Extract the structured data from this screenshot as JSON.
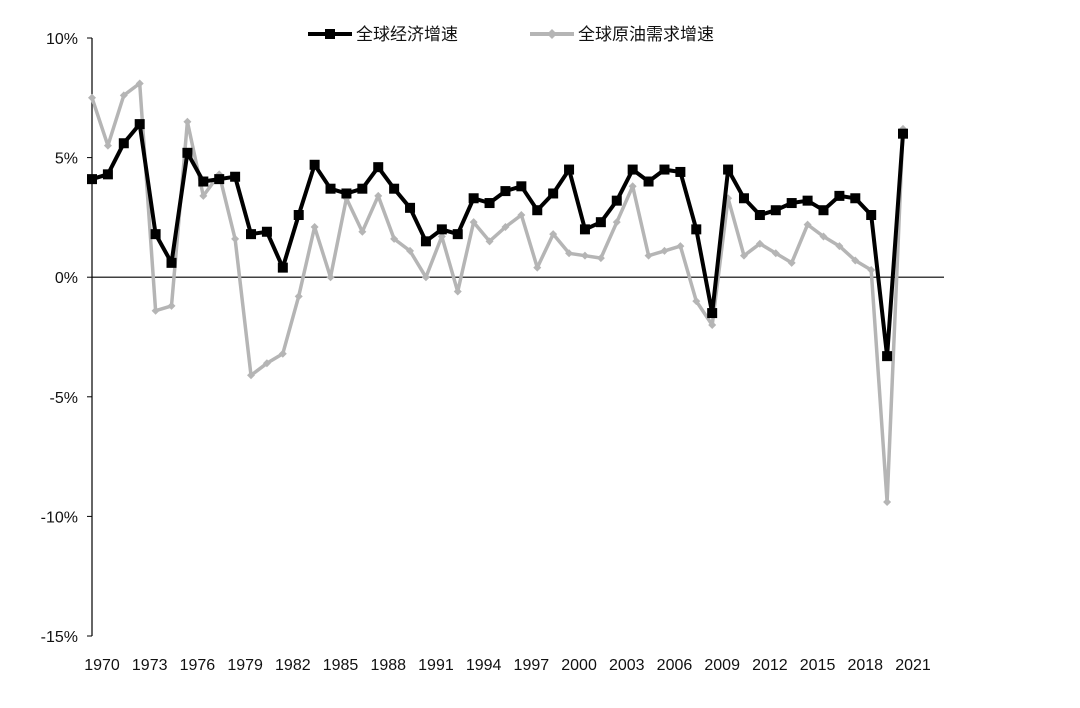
{
  "chart_data": {
    "type": "line",
    "title": "",
    "xlabel": "",
    "ylabel": "",
    "x": [
      1970,
      1971,
      1972,
      1973,
      1974,
      1975,
      1976,
      1977,
      1978,
      1979,
      1980,
      1981,
      1982,
      1983,
      1984,
      1985,
      1986,
      1987,
      1988,
      1989,
      1990,
      1991,
      1992,
      1993,
      1994,
      1995,
      1996,
      1997,
      1998,
      1999,
      2000,
      2001,
      2002,
      2003,
      2004,
      2005,
      2006,
      2007,
      2008,
      2009,
      2010,
      2011,
      2012,
      2013,
      2014,
      2015,
      2016,
      2017,
      2018,
      2019,
      2020,
      2021
    ],
    "xlim": [
      1970,
      2021
    ],
    "ylim": [
      -15,
      10
    ],
    "y_ticks": [
      10,
      5,
      0,
      -5,
      -10,
      -15
    ],
    "y_tick_labels": [
      "10%",
      "5%",
      "0%",
      "-5%",
      "-10%",
      "-15%"
    ],
    "x_ticks": [
      1970,
      1973,
      1976,
      1979,
      1982,
      1985,
      1988,
      1991,
      1994,
      1997,
      2000,
      2003,
      2006,
      2009,
      2012,
      2015,
      2018,
      2021
    ],
    "x_tick_labels": [
      "1970",
      "1973",
      "1976",
      "1979",
      "1982",
      "1985",
      "1988",
      "1991",
      "1994",
      "1997",
      "2000",
      "2003",
      "2006",
      "2009",
      "2012",
      "2015",
      "2018",
      "2021"
    ],
    "legend_position": "top",
    "grid": false,
    "series": [
      {
        "name": "全球经济增速",
        "color": "#000000",
        "marker": "square",
        "values": [
          4.1,
          4.3,
          5.6,
          6.4,
          1.8,
          0.6,
          5.2,
          4.0,
          4.1,
          4.2,
          1.8,
          1.9,
          0.4,
          2.6,
          4.7,
          3.7,
          3.5,
          3.7,
          4.6,
          3.7,
          2.9,
          1.5,
          2.0,
          1.8,
          3.3,
          3.1,
          3.6,
          3.8,
          2.8,
          3.5,
          4.5,
          2.0,
          2.3,
          3.2,
          4.5,
          4.0,
          4.5,
          4.4,
          2.0,
          -1.5,
          4.5,
          3.3,
          2.6,
          2.8,
          3.1,
          3.2,
          2.8,
          3.4,
          3.3,
          2.6,
          -3.3,
          6.0
        ]
      },
      {
        "name": "全球原油需求增速",
        "color": "#b5b5b5",
        "marker": "diamond",
        "values": [
          7.5,
          5.5,
          7.6,
          8.1,
          -1.4,
          -1.2,
          6.5,
          3.4,
          4.3,
          1.6,
          -4.1,
          -3.6,
          -3.2,
          -0.8,
          2.1,
          0.0,
          3.3,
          1.9,
          3.4,
          1.6,
          1.1,
          0.0,
          1.7,
          -0.6,
          2.3,
          1.5,
          2.1,
          2.6,
          0.4,
          1.8,
          1.0,
          0.9,
          0.8,
          2.3,
          3.8,
          0.9,
          1.1,
          1.3,
          -1.0,
          -2.0,
          3.3,
          0.9,
          1.4,
          1.0,
          0.6,
          2.2,
          1.7,
          1.3,
          0.7,
          0.3,
          -9.4,
          6.2
        ]
      }
    ]
  }
}
